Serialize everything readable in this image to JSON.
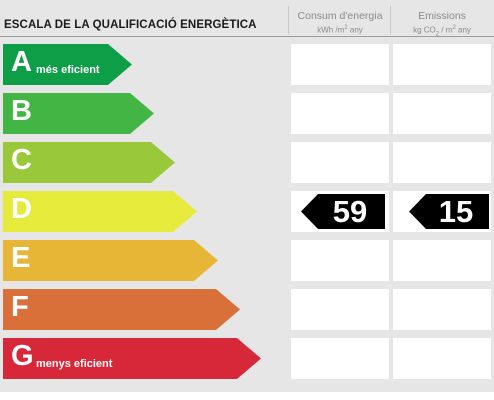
{
  "header": {
    "title": "ESCALA DE LA QUALIFICACIÓ ENERGÈTICA",
    "consumption": {
      "label": "Consum d'energia",
      "unit_main": "kWh /m",
      "unit_exp": "2",
      "unit_tail": " any"
    },
    "emissions": {
      "label": "Emissions",
      "unit_main": "kg CO",
      "unit_sub": "2",
      "unit_mid": " / m",
      "unit_exp": "2",
      "unit_tail": " any"
    }
  },
  "ratings": [
    {
      "letter": "A",
      "note": "més eficient",
      "color": "#0f9e48"
    },
    {
      "letter": "B",
      "note": "",
      "color": "#43b544"
    },
    {
      "letter": "C",
      "note": "",
      "color": "#99c93b"
    },
    {
      "letter": "D",
      "note": "",
      "color": "#e5ea3b"
    },
    {
      "letter": "E",
      "note": "",
      "color": "#e8b637"
    },
    {
      "letter": "F",
      "note": "",
      "color": "#d9703a"
    },
    {
      "letter": "G",
      "note": "menys eficient",
      "color": "#d7283a"
    }
  ],
  "current": {
    "rating": "D",
    "consumption": "59",
    "emissions": "15",
    "badge_color": "#000000"
  }
}
